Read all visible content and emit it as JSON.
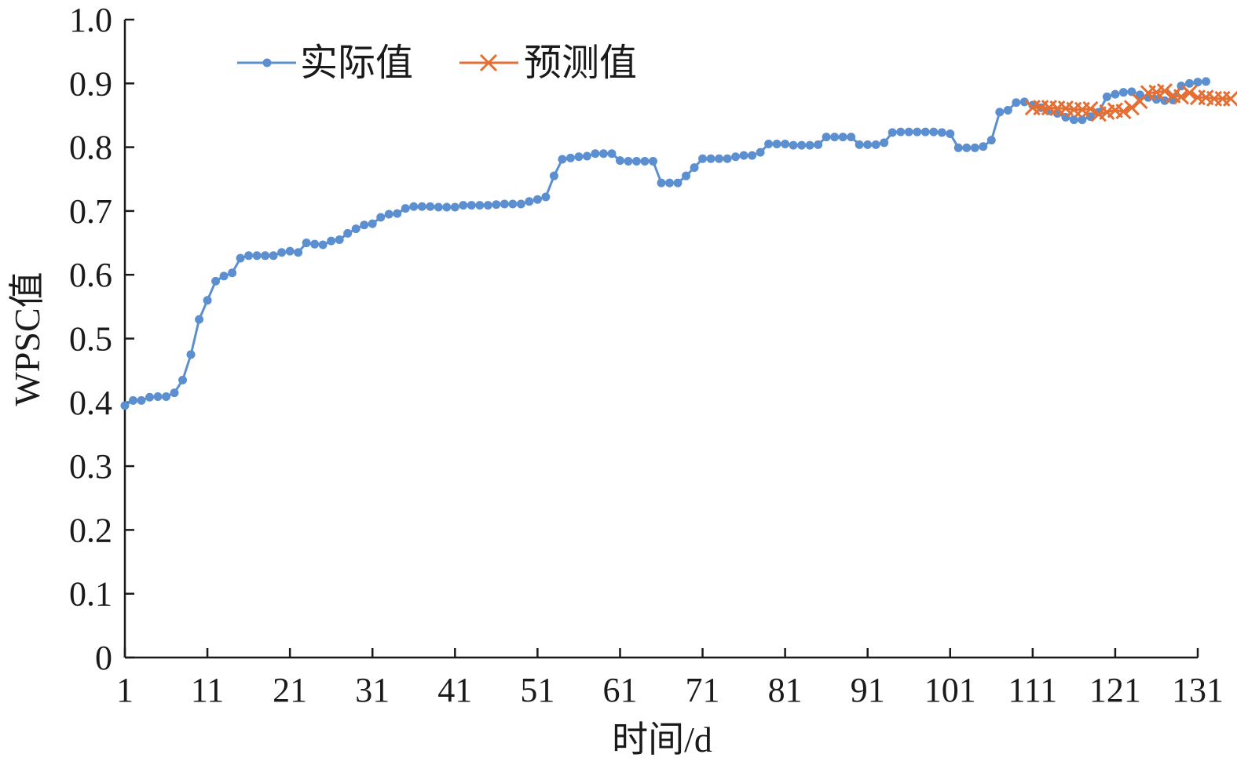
{
  "colors": {
    "actual": "#5b8fd0",
    "predicted": "#e46f34",
    "axis": "#1a1a1a"
  },
  "chart_data": {
    "type": "line",
    "title": "",
    "xlabel": "时间/d",
    "ylabel": "WPSC值",
    "xlim": [
      1,
      131
    ],
    "ylim": [
      0,
      1.0
    ],
    "x_ticks": [
      "1",
      "11",
      "21",
      "31",
      "41",
      "51",
      "61",
      "71",
      "81",
      "91",
      "101",
      "111",
      "121",
      "131"
    ],
    "y_ticks": [
      "0",
      "0.1",
      "0.2",
      "0.3",
      "0.4",
      "0.5",
      "0.6",
      "0.7",
      "0.8",
      "0.9",
      "1.0"
    ],
    "legend_position": "top-left",
    "grid": false,
    "series": [
      {
        "name": "实际值",
        "marker": "circle",
        "x_start": 1,
        "values": [
          0.395,
          0.403,
          0.403,
          0.408,
          0.409,
          0.409,
          0.415,
          0.435,
          0.475,
          0.53,
          0.56,
          0.59,
          0.598,
          0.603,
          0.626,
          0.63,
          0.63,
          0.63,
          0.63,
          0.635,
          0.637,
          0.635,
          0.65,
          0.648,
          0.647,
          0.653,
          0.655,
          0.665,
          0.672,
          0.678,
          0.68,
          0.69,
          0.695,
          0.696,
          0.704,
          0.707,
          0.707,
          0.707,
          0.706,
          0.706,
          0.706,
          0.709,
          0.709,
          0.709,
          0.709,
          0.71,
          0.711,
          0.711,
          0.711,
          0.715,
          0.718,
          0.722,
          0.755,
          0.781,
          0.783,
          0.785,
          0.786,
          0.79,
          0.79,
          0.79,
          0.779,
          0.778,
          0.778,
          0.778,
          0.778,
          0.744,
          0.744,
          0.744,
          0.755,
          0.768,
          0.782,
          0.782,
          0.782,
          0.782,
          0.785,
          0.787,
          0.787,
          0.792,
          0.805,
          0.805,
          0.805,
          0.803,
          0.803,
          0.803,
          0.804,
          0.816,
          0.816,
          0.816,
          0.816,
          0.804,
          0.804,
          0.804,
          0.807,
          0.823,
          0.824,
          0.824,
          0.824,
          0.824,
          0.824,
          0.823,
          0.821,
          0.799,
          0.799,
          0.799,
          0.801,
          0.811,
          0.855,
          0.858,
          0.87,
          0.871,
          0.866,
          0.862,
          0.857,
          0.853,
          0.847,
          0.843,
          0.843,
          0.848,
          0.855,
          0.879,
          0.883,
          0.886,
          0.887,
          0.882,
          0.878,
          0.875,
          0.873,
          0.874,
          0.896,
          0.9,
          0.902,
          0.903
        ]
      },
      {
        "name": "预测值",
        "marker": "x",
        "x_start": 111,
        "values": [
          0.862,
          0.862,
          0.862,
          0.861,
          0.861,
          0.859,
          0.859,
          0.86,
          0.852,
          0.855,
          0.858,
          0.856,
          0.862,
          0.872,
          0.885,
          0.886,
          0.888,
          0.881,
          0.879,
          0.885,
          0.878,
          0.878,
          0.876,
          0.876,
          0.876
        ]
      }
    ]
  }
}
